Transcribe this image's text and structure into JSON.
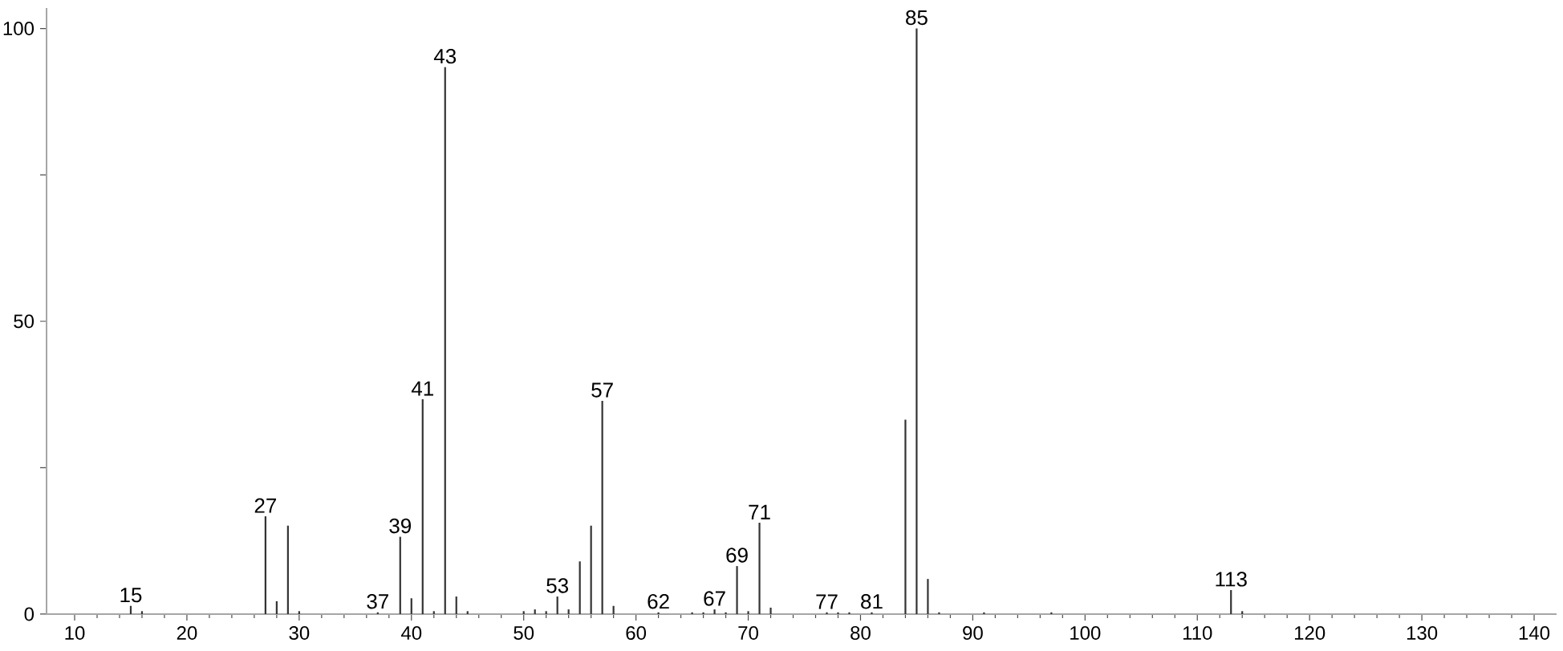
{
  "chart_data": {
    "type": "bar",
    "color": "#333333",
    "x": [
      15,
      16,
      27,
      28,
      29,
      30,
      37,
      39,
      40,
      41,
      42,
      43,
      44,
      45,
      50,
      51,
      52,
      53,
      54,
      55,
      56,
      57,
      58,
      62,
      65,
      66,
      67,
      68,
      69,
      70,
      71,
      72,
      77,
      78,
      79,
      81,
      84,
      85,
      86,
      87,
      91,
      97,
      113,
      114
    ],
    "values": [
      1.4,
      0.5,
      16.7,
      2.2,
      15.1,
      0.5,
      0.3,
      13.2,
      2.7,
      36.7,
      0.5,
      93.4,
      3.0,
      0.5,
      0.5,
      0.8,
      0.5,
      3.0,
      0.8,
      9.0,
      15.1,
      36.4,
      1.4,
      0.3,
      0.3,
      0.3,
      0.8,
      0.3,
      8.2,
      0.5,
      15.6,
      1.1,
      0.3,
      0.3,
      0.3,
      0.3,
      33.2,
      100,
      6.0,
      0.3,
      0.3,
      0.3,
      4.1,
      0.5
    ],
    "annotations": [
      {
        "text": "15",
        "x": 15,
        "y": 1.4
      },
      {
        "text": "27",
        "x": 27,
        "y": 16.7
      },
      {
        "text": "37",
        "x": 37,
        "y": 0.3
      },
      {
        "text": "39",
        "x": 39,
        "y": 13.2
      },
      {
        "text": "41",
        "x": 41,
        "y": 36.7
      },
      {
        "text": "43",
        "x": 43,
        "y": 93.4
      },
      {
        "text": "53",
        "x": 53,
        "y": 3.0
      },
      {
        "text": "57",
        "x": 57,
        "y": 36.4
      },
      {
        "text": "62",
        "x": 62,
        "y": 0.3
      },
      {
        "text": "67",
        "x": 67,
        "y": 0.8
      },
      {
        "text": "69",
        "x": 69,
        "y": 8.2
      },
      {
        "text": "71",
        "x": 71,
        "y": 15.6
      },
      {
        "text": "77",
        "x": 77,
        "y": 0.3
      },
      {
        "text": "81",
        "x": 81,
        "y": 0.3
      },
      {
        "text": "85",
        "x": 85,
        "y": 100
      },
      {
        "text": "113",
        "x": 113,
        "y": 4.1
      }
    ],
    "xlim": [
      7.5,
      142
    ],
    "ylim": [
      0,
      103.5
    ],
    "xticks": [
      10,
      20,
      30,
      40,
      50,
      60,
      70,
      80,
      90,
      100,
      110,
      120,
      130,
      140
    ],
    "yticks": [
      0,
      {
        "value": 25,
        "label": null
      },
      50,
      {
        "value": 75,
        "label": null
      },
      100
    ]
  }
}
